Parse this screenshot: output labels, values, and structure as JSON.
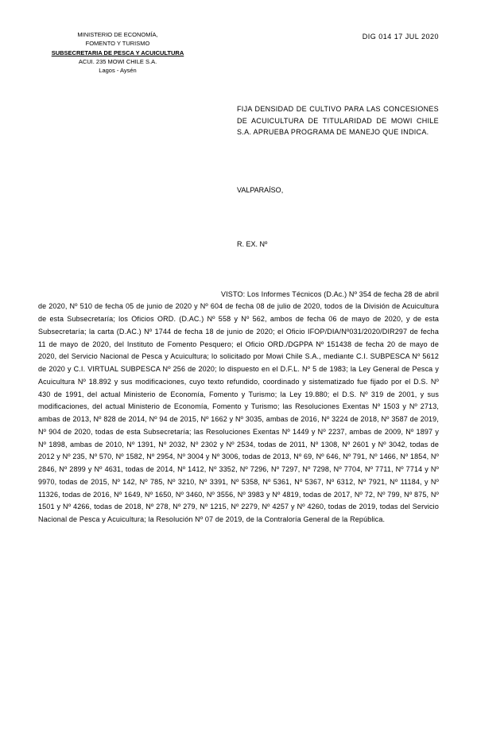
{
  "header": {
    "ministry_line1": "MINISTERIO DE ECONOMÍA,",
    "ministry_line2": "FOMENTO Y TURISMO",
    "subsecretaria": "SUBSECRETARIA DE PESCA Y ACUICULTURA",
    "company": "ACUI. 235 MOWI CHILE S.A.",
    "region": "Lagos - Aysén",
    "doc_number": "DIG 014 17 JUL 2020"
  },
  "title": {
    "text": "FIJA DENSIDAD DE CULTIVO PARA LAS CONCESIONES DE ACUICULTURA DE TITULARIDAD DE MOWI CHILE S.A. APRUEBA PROGRAMA DE MANEJO QUE INDICA."
  },
  "location": {
    "text": "VALPARAÍSO,"
  },
  "rex": {
    "text": "R. EX. Nº"
  },
  "body": {
    "first_word": "VISTO:",
    "text": " Los Informes Técnicos (D.Ac.) Nº 354 de fecha 28 de abril de 2020, Nº 510 de fecha 05 de junio de 2020 y Nº 604 de fecha 08 de julio de 2020, todos de la División de Acuicultura de esta Subsecretaría; los Oficios ORD. (D.AC.) Nº 558 y Nº 562, ambos de fecha 06 de mayo de 2020, y de esta Subsecretaría; la carta (D.AC.) Nº 1744 de fecha 18 de junio de 2020; el Oficio IFOP/DIA/Nº031/2020/DIR297 de fecha 11 de mayo de 2020, del Instituto de Fomento Pesquero; el Oficio ORD./DGPPA Nº 151438 de fecha 20 de mayo de 2020, del Servicio Nacional de Pesca y Acuicultura; lo solicitado por Mowi Chile S.A., mediante C.I. SUBPESCA Nº 5612 de 2020 y C.I. VIRTUAL SUBPESCA Nº 256 de 2020; lo dispuesto en el D.F.L. Nº 5 de 1983; la Ley General de Pesca y Acuicultura Nº 18.892 y sus modificaciones, cuyo texto refundido, coordinado y sistematizado fue fijado por el D.S. Nº 430 de 1991, del actual Ministerio de Economía, Fomento y Turismo; la Ley 19.880; el D.S. Nº 319 de 2001, y sus modificaciones, del actual Ministerio de Economía, Fomento y Turismo; las Resoluciones Exentas Nº 1503 y Nº 2713, ambas de 2013, Nº 828 de 2014, Nº 94 de 2015, Nº 1662 y Nº 3035, ambas de 2016, Nº 3224 de 2018, Nº 3587 de 2019, Nº 904 de 2020, todas de esta Subsecretaría; las Resoluciones Exentas Nº 1449 y Nº 2237, ambas de 2009, Nº 1897 y Nº 1898, ambas de 2010, Nº 1391, Nº 2032, Nº 2302 y Nº 2534, todas de 2011, Nº 1308, Nº 2601 y Nº 3042, todas de 2012 y Nº 235, Nº 570, Nº 1582, Nº 2954, Nº 3004 y Nº 3006, todas de 2013, Nº 69, Nº 646, Nº 791, Nº 1466, Nº 1854, Nº 2846, Nº 2899 y Nº 4631, todas de 2014, Nº 1412, Nº 3352, Nº 7296, Nº 7297, Nº 7298, Nº 7704, Nº 7711, Nº 7714 y Nº 9970, todas de 2015, Nº 142, Nº 785, Nº 3210, Nº 3391, Nº 5358, Nº 5361, Nº 5367, Nº 6312, Nº 7921, Nº 11184, y Nº 11326, todas de 2016, Nº 1649, Nº 1650, Nº 3460, Nº 3556, Nº 3983 y Nº 4819, todas de 2017, Nº 72, Nº 799, Nº 875, Nº 1501 y Nº 4266, todas de 2018, Nº 278, Nº 279, Nº 1215, Nº 2279, Nº 4257 y Nº 4260, todas de 2019, todas del Servicio Nacional de Pesca y Acuicultura; la Resolución Nº 07 de 2019, de la Contraloría General de la República."
  }
}
